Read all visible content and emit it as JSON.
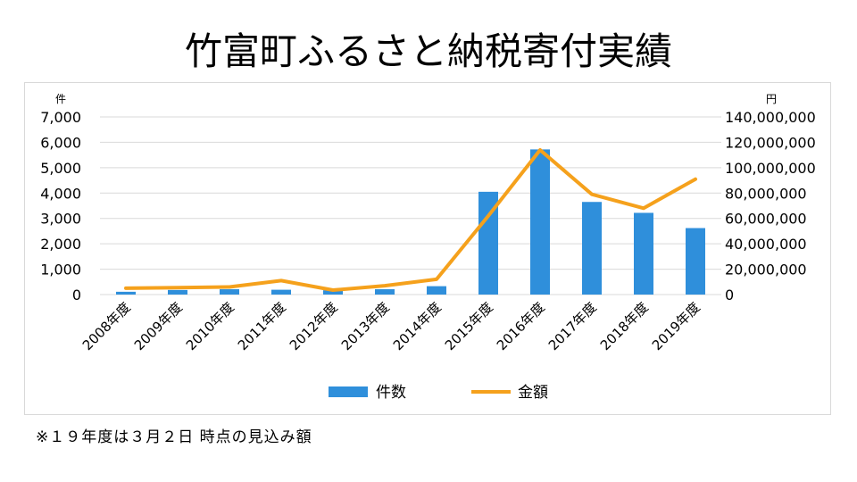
{
  "title": "竹富町ふるさと納税寄付実績",
  "footnote": "※１９年度は３月２日 時点の見込み額",
  "chart_data": {
    "type": "bar+line",
    "categories": [
      "2008年度",
      "2009年度",
      "2010年度",
      "2011年度",
      "2012年度",
      "2013年度",
      "2014年度",
      "2015年度",
      "2016年度",
      "2017年度",
      "2018年度",
      "2019年度"
    ],
    "series": [
      {
        "name": "件数",
        "type": "bar",
        "axis": "left",
        "color": "#2f8fdb",
        "values": [
          110,
          180,
          210,
          190,
          170,
          210,
          330,
          4050,
          5720,
          3650,
          3220,
          2620
        ]
      },
      {
        "name": "金額",
        "type": "line",
        "axis": "right",
        "color": "#f5a11c",
        "values": [
          5000000,
          5500000,
          6000000,
          11000000,
          3500000,
          7000000,
          12000000,
          62000000,
          114000000,
          79000000,
          68000000,
          91000000
        ]
      }
    ],
    "y_left": {
      "unit": "件",
      "min": 0,
      "max": 7000,
      "ticks": [
        "0",
        "1,000",
        "2,000",
        "3,000",
        "4,000",
        "5,000",
        "6,000",
        "7,000"
      ]
    },
    "y_right": {
      "unit": "円",
      "min": 0,
      "max": 140000000,
      "ticks": [
        "0",
        "20,000,000",
        "40,000,000",
        "60,000,000",
        "80,000,000",
        "100,000,000",
        "120,000,000",
        "140,000,000"
      ]
    },
    "grid": true,
    "legend": "bottom"
  }
}
